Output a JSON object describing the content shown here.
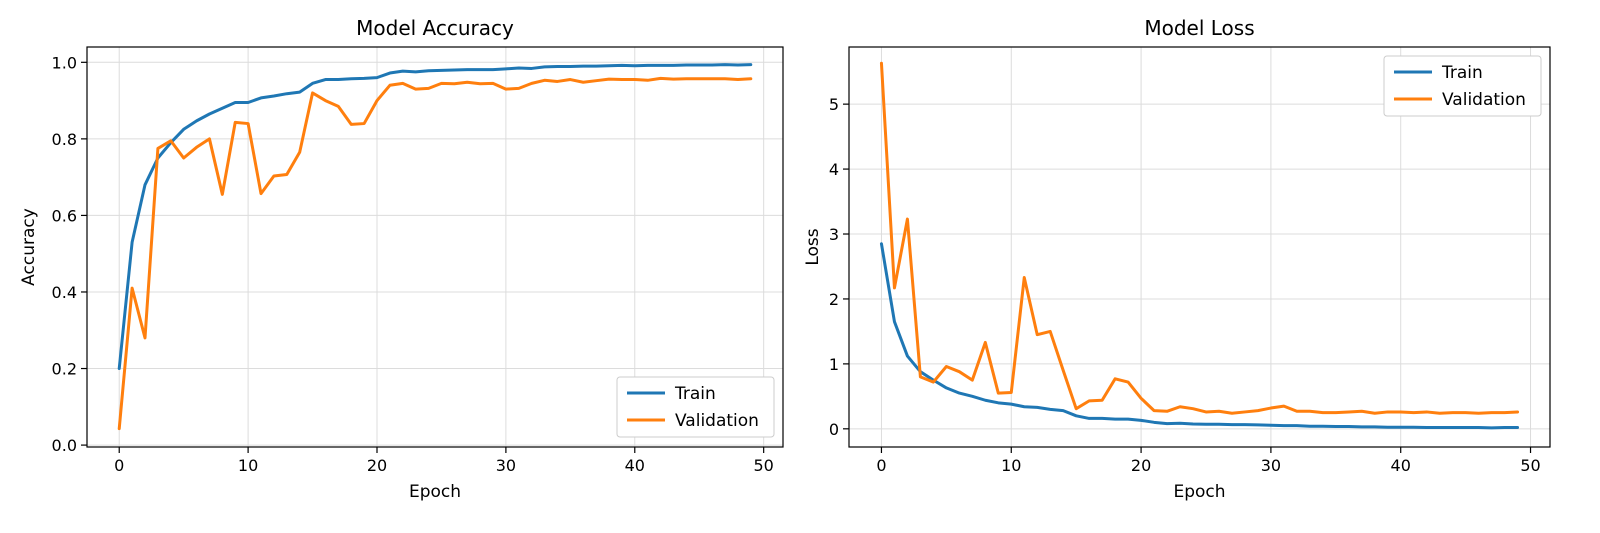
{
  "colors": {
    "train": "#1f77b4",
    "validation": "#ff7f0e"
  },
  "chart_data": [
    {
      "type": "line",
      "title": "Model Accuracy",
      "xlabel": "Epoch",
      "ylabel": "Accuracy",
      "xlim": [
        -2.5,
        51.5
      ],
      "ylim": [
        -0.005,
        1.04
      ],
      "xticks": [
        0,
        10,
        20,
        30,
        40,
        50
      ],
      "xtick_labels": [
        "0",
        "10",
        "20",
        "30",
        "40",
        "50"
      ],
      "yticks": [
        0.0,
        0.2,
        0.4,
        0.6,
        0.8,
        1.0
      ],
      "ytick_labels": [
        "0.0",
        "0.2",
        "0.4",
        "0.6",
        "0.8",
        "1.0"
      ],
      "grid": true,
      "legend_position": "lower-right",
      "x": [
        0,
        1,
        2,
        3,
        4,
        5,
        6,
        7,
        8,
        9,
        10,
        11,
        12,
        13,
        14,
        15,
        16,
        17,
        18,
        19,
        20,
        21,
        22,
        23,
        24,
        25,
        26,
        27,
        28,
        29,
        30,
        31,
        32,
        33,
        34,
        35,
        36,
        37,
        38,
        39,
        40,
        41,
        42,
        43,
        44,
        45,
        46,
        47,
        48,
        49
      ],
      "series": [
        {
          "name": "Train",
          "color": "#1f77b4",
          "values": [
            0.2,
            0.53,
            0.68,
            0.75,
            0.79,
            0.825,
            0.847,
            0.865,
            0.88,
            0.895,
            0.895,
            0.907,
            0.912,
            0.918,
            0.922,
            0.945,
            0.955,
            0.955,
            0.957,
            0.958,
            0.96,
            0.972,
            0.977,
            0.975,
            0.978,
            0.979,
            0.98,
            0.981,
            0.981,
            0.981,
            0.983,
            0.985,
            0.984,
            0.988,
            0.989,
            0.989,
            0.99,
            0.99,
            0.991,
            0.992,
            0.991,
            0.992,
            0.992,
            0.992,
            0.993,
            0.993,
            0.993,
            0.994,
            0.993,
            0.994
          ]
        },
        {
          "name": "Validation",
          "color": "#ff7f0e",
          "values": [
            0.043,
            0.41,
            0.28,
            0.775,
            0.795,
            0.75,
            0.778,
            0.8,
            0.655,
            0.843,
            0.84,
            0.657,
            0.703,
            0.707,
            0.765,
            0.92,
            0.9,
            0.885,
            0.838,
            0.84,
            0.9,
            0.94,
            0.945,
            0.93,
            0.932,
            0.945,
            0.944,
            0.948,
            0.944,
            0.945,
            0.93,
            0.932,
            0.945,
            0.953,
            0.95,
            0.955,
            0.948,
            0.952,
            0.956,
            0.955,
            0.955,
            0.953,
            0.958,
            0.956,
            0.957,
            0.957,
            0.957,
            0.957,
            0.955,
            0.957
          ]
        }
      ]
    },
    {
      "type": "line",
      "title": "Model Loss",
      "xlabel": "Epoch",
      "ylabel": "Loss",
      "xlim": [
        -2.5,
        51.5
      ],
      "ylim": [
        -0.28,
        5.88
      ],
      "xticks": [
        0,
        10,
        20,
        30,
        40,
        50
      ],
      "xtick_labels": [
        "0",
        "10",
        "20",
        "30",
        "40",
        "50"
      ],
      "yticks": [
        0,
        1,
        2,
        3,
        4,
        5
      ],
      "ytick_labels": [
        "0",
        "1",
        "2",
        "3",
        "4",
        "5"
      ],
      "grid": true,
      "legend_position": "upper-right",
      "x": [
        0,
        1,
        2,
        3,
        4,
        5,
        6,
        7,
        8,
        9,
        10,
        11,
        12,
        13,
        14,
        15,
        16,
        17,
        18,
        19,
        20,
        21,
        22,
        23,
        24,
        25,
        26,
        27,
        28,
        29,
        30,
        31,
        32,
        33,
        34,
        35,
        36,
        37,
        38,
        39,
        40,
        41,
        42,
        43,
        44,
        45,
        46,
        47,
        48,
        49
      ],
      "series": [
        {
          "name": "Train",
          "color": "#1f77b4",
          "values": [
            2.85,
            1.65,
            1.12,
            0.88,
            0.75,
            0.63,
            0.55,
            0.5,
            0.44,
            0.4,
            0.38,
            0.34,
            0.33,
            0.3,
            0.28,
            0.2,
            0.16,
            0.16,
            0.15,
            0.15,
            0.13,
            0.1,
            0.08,
            0.085,
            0.075,
            0.07,
            0.07,
            0.065,
            0.065,
            0.06,
            0.055,
            0.05,
            0.05,
            0.04,
            0.04,
            0.035,
            0.035,
            0.03,
            0.03,
            0.025,
            0.025,
            0.025,
            0.02,
            0.02,
            0.02,
            0.02,
            0.02,
            0.015,
            0.02,
            0.02
          ]
        },
        {
          "name": "Validation",
          "color": "#ff7f0e",
          "values": [
            5.63,
            2.17,
            3.23,
            0.8,
            0.72,
            0.96,
            0.88,
            0.75,
            1.33,
            0.55,
            0.56,
            2.33,
            1.45,
            1.5,
            0.9,
            0.31,
            0.43,
            0.44,
            0.77,
            0.72,
            0.47,
            0.28,
            0.27,
            0.34,
            0.31,
            0.26,
            0.27,
            0.24,
            0.26,
            0.28,
            0.32,
            0.35,
            0.27,
            0.27,
            0.25,
            0.25,
            0.26,
            0.27,
            0.24,
            0.26,
            0.26,
            0.25,
            0.26,
            0.24,
            0.25,
            0.25,
            0.24,
            0.25,
            0.25,
            0.26
          ]
        }
      ]
    }
  ]
}
